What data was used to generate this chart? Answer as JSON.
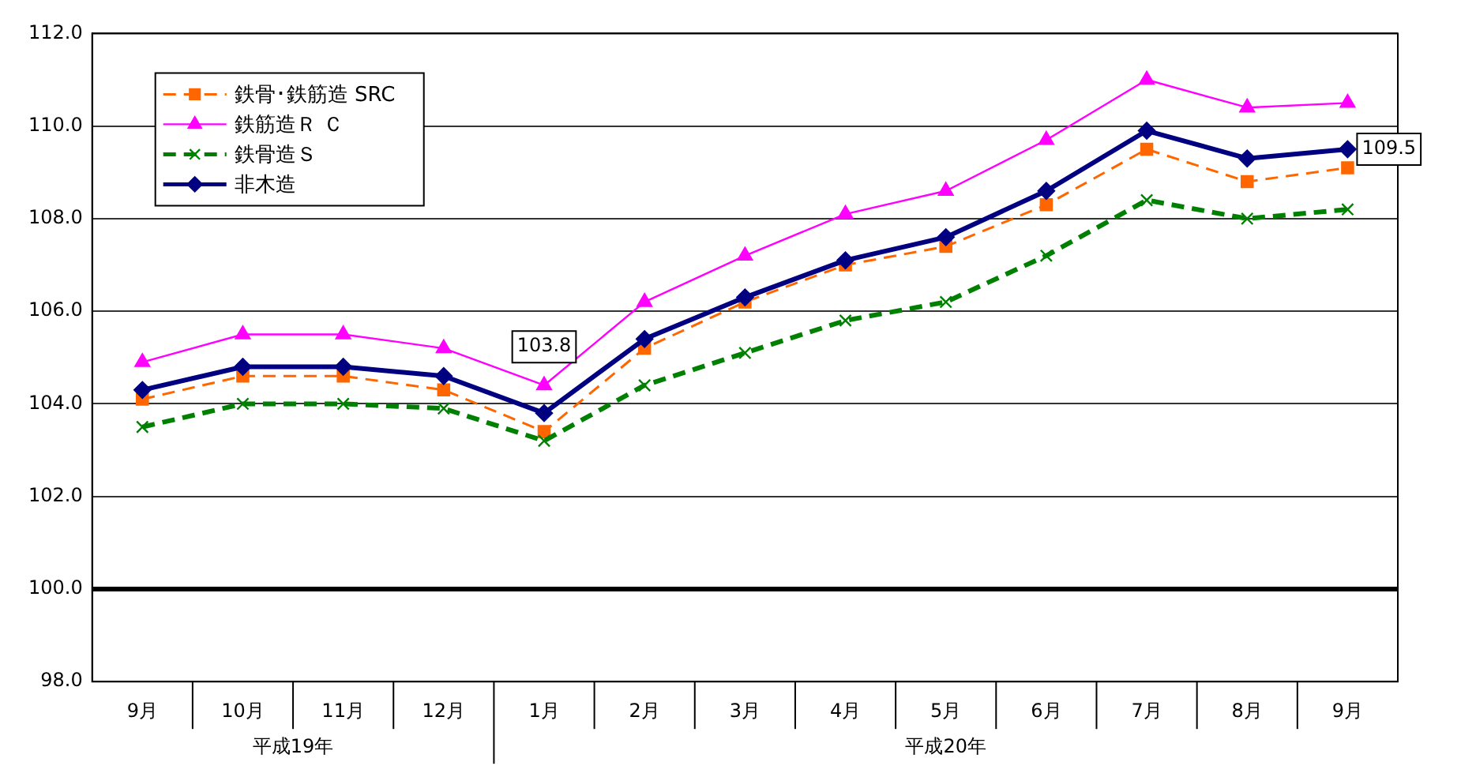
{
  "chart_data": {
    "type": "line",
    "categories": [
      "9月",
      "10月",
      "11月",
      "12月",
      "1月",
      "2月",
      "3月",
      "4月",
      "5月",
      "6月",
      "7月",
      "8月",
      "9月"
    ],
    "series": [
      {
        "name": "鉄骨･鉄筋造 SRC",
        "color": "#ff6600",
        "marker": "square",
        "line_style": "dashed",
        "values": [
          104.1,
          104.6,
          104.6,
          104.3,
          103.4,
          105.2,
          106.2,
          107.0,
          107.4,
          108.3,
          109.5,
          108.8,
          109.1
        ]
      },
      {
        "name": "鉄筋造Ｒ Ｃ",
        "color": "#ff00ff",
        "marker": "triangle",
        "line_style": "solid",
        "values": [
          104.9,
          105.5,
          105.5,
          105.2,
          104.4,
          106.2,
          107.2,
          108.1,
          108.6,
          109.7,
          111.0,
          110.4,
          110.5
        ]
      },
      {
        "name": "鉄骨造Ｓ",
        "color": "#008000",
        "marker": "cross",
        "line_style": "dashed",
        "values": [
          103.5,
          104.0,
          104.0,
          103.9,
          103.2,
          104.4,
          105.1,
          105.8,
          106.2,
          107.2,
          108.4,
          108.0,
          108.2
        ]
      },
      {
        "name": "非木造",
        "color": "#000080",
        "marker": "diamond",
        "line_style": "solid",
        "values": [
          104.3,
          104.8,
          104.8,
          104.6,
          103.8,
          105.4,
          106.3,
          107.1,
          107.6,
          108.6,
          109.9,
          109.3,
          109.5
        ]
      }
    ],
    "ylim": [
      98,
      112
    ],
    "yticks": [
      {
        "value": 98,
        "label": "98.0"
      },
      {
        "value": 100,
        "label": "100.0"
      },
      {
        "value": 102,
        "label": "102.0"
      },
      {
        "value": 104,
        "label": "104.0"
      },
      {
        "value": 106,
        "label": "106.0"
      },
      {
        "value": 108,
        "label": "108.0"
      },
      {
        "value": 110,
        "label": "110.0"
      },
      {
        "value": 112,
        "label": "112.0"
      }
    ],
    "grid": "y",
    "legend": "top left",
    "ref_lines": [
      {
        "axis": "y",
        "value": 100,
        "color": "#000000"
      }
    ],
    "annotations": [
      {
        "text": "103.8",
        "x": "1月",
        "y": 103.8
      },
      "109.5",
      "平成19年",
      "平成20年"
    ]
  }
}
